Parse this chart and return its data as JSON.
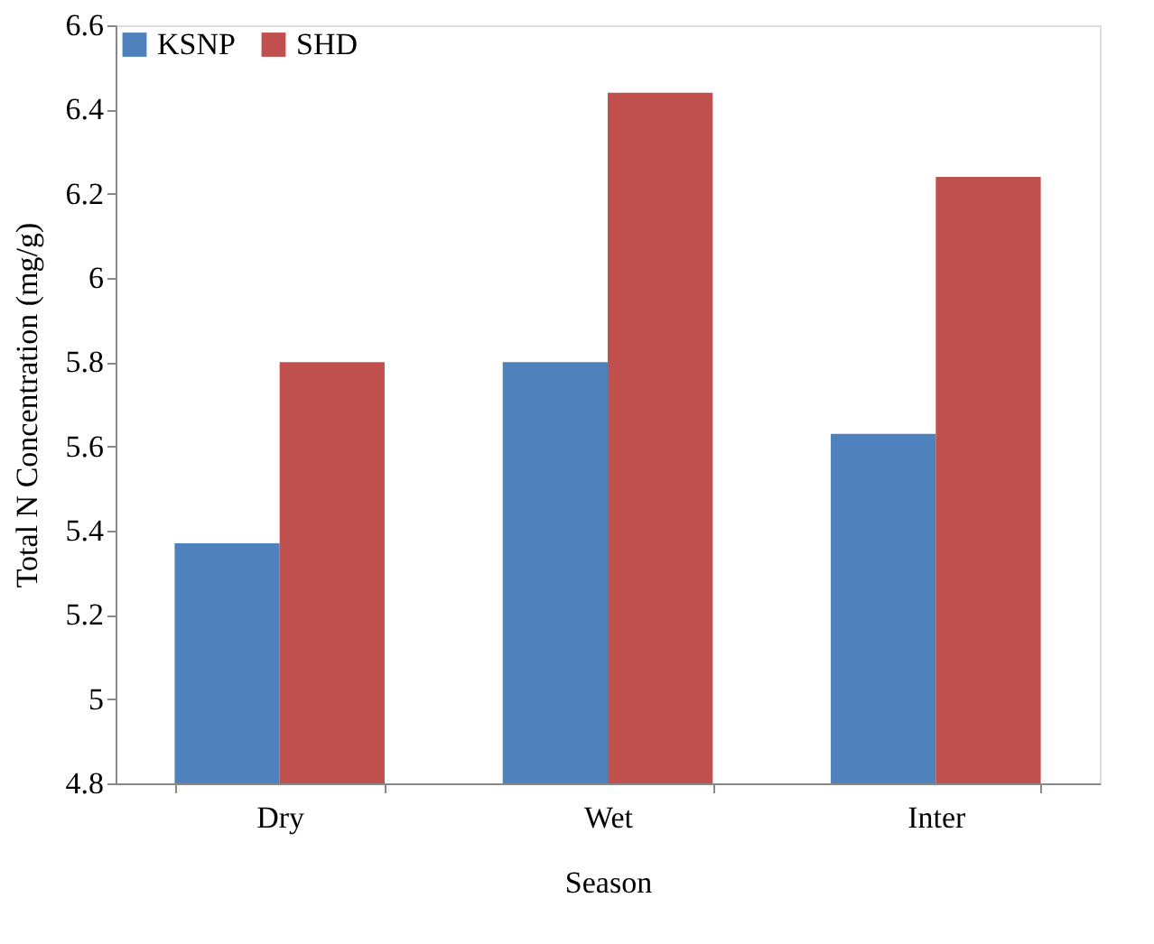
{
  "chart_data": {
    "type": "bar",
    "xlabel": "Season",
    "ylabel": "Total N Concentration (mg/g)",
    "categories": [
      "Dry",
      "Wet",
      "Inter"
    ],
    "series": [
      {
        "name": "KSNP",
        "color": "#4f81bd",
        "values": [
          5.37,
          5.8,
          5.63
        ]
      },
      {
        "name": "SHD",
        "color": "#c0504d",
        "values": [
          5.8,
          6.44,
          6.24
        ]
      }
    ],
    "ylim": [
      4.8,
      6.6
    ],
    "yticks": [
      {
        "value": 4.8,
        "label": "4.8"
      },
      5,
      {
        "value": 5.2,
        "label": "5.2"
      },
      {
        "value": 5.4,
        "label": "5.4"
      },
      {
        "value": 5.6,
        "label": "5.6"
      },
      {
        "value": 5.8,
        "label": "5.8"
      },
      6,
      {
        "value": 6.2,
        "label": "6.2"
      },
      {
        "value": 6.4,
        "label": "6.4"
      },
      {
        "value": 6.6,
        "label": "6.6"
      }
    ],
    "grid": false,
    "legend": "top left"
  }
}
